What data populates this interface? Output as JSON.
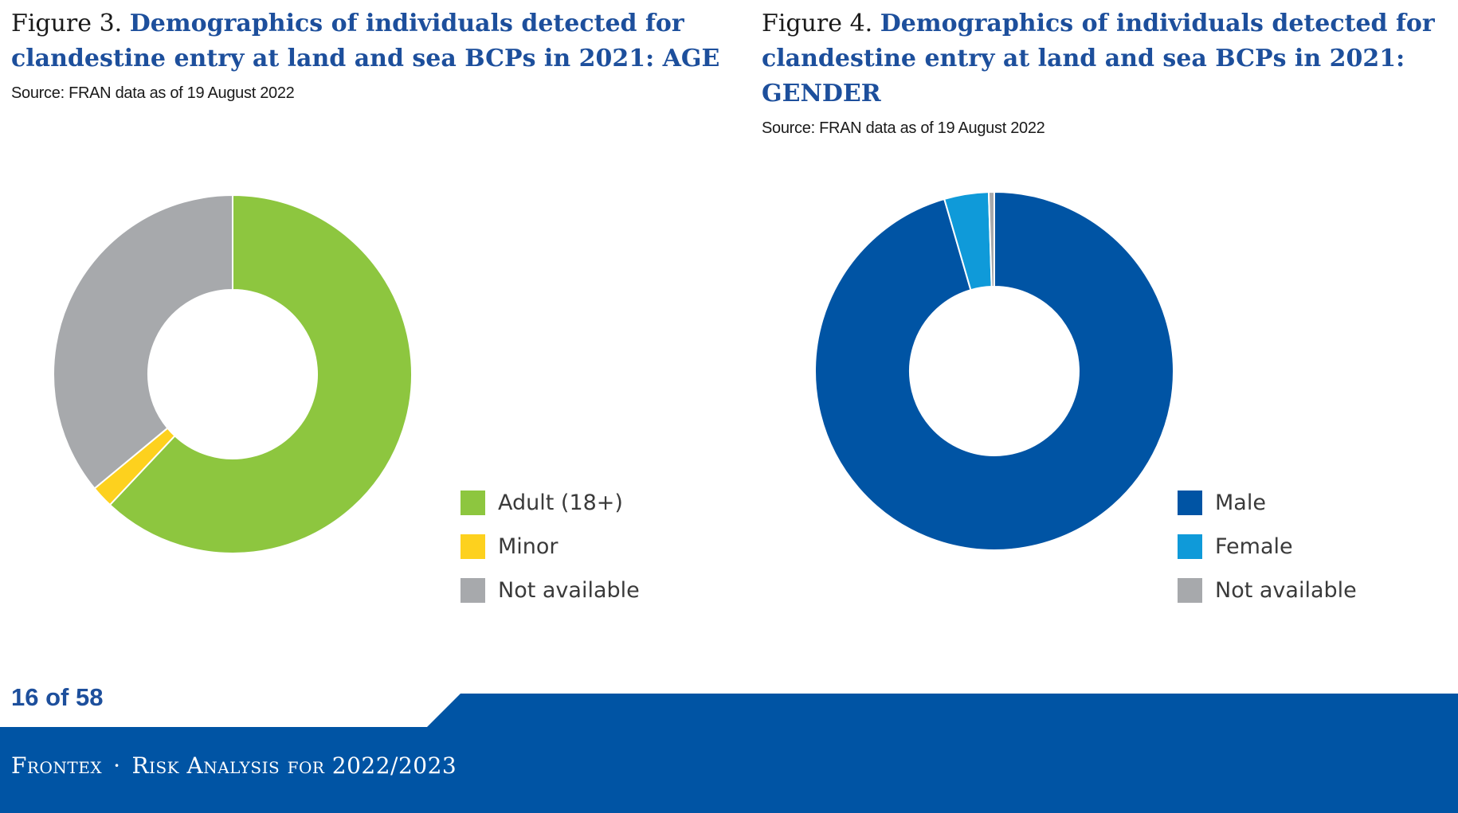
{
  "figures": [
    {
      "number": "Figure 3.",
      "heading_line1": "Demographics of individuals detected for",
      "heading_line2": "clandestine entry at land and sea BCPs in 2021: AGE",
      "source": "Source: FRAN data as of 19 August 2022"
    },
    {
      "number": "Figure 4.",
      "heading_line1": "Demographics of individuals detected for",
      "heading_line2": "clandestine entry at land and sea BCPs in 2021: GENDER",
      "source": "Source: FRAN data as of 19 August 2022"
    }
  ],
  "chart_data": [
    {
      "type": "pie",
      "donut": true,
      "title": "Demographics of individuals detected for clandestine entry at land and sea BCPs in 2021: AGE",
      "categories": [
        "Adult (18+)",
        "Minor",
        "Not available"
      ],
      "values": [
        62,
        2,
        36
      ],
      "unit": "%",
      "colors": [
        "#8dc63f",
        "#fdd11e",
        "#a7a9ac"
      ],
      "legend_position": "right-bottom"
    },
    {
      "type": "pie",
      "donut": true,
      "title": "Demographics of individuals detected for clandestine entry at land and sea BCPs in 2021: GENDER",
      "categories": [
        "Male",
        "Female",
        "Not available"
      ],
      "values": [
        95.5,
        4,
        0.5
      ],
      "unit": "%",
      "colors": [
        "#0054a4",
        "#0f9ad9",
        "#a7a9ac"
      ],
      "legend_position": "right-bottom"
    }
  ],
  "footer": {
    "page_number": "16 of 58",
    "org": "Frontex",
    "separator": "·",
    "publication": "Risk Analysis for 2022/2023",
    "band_color": "#0054a4"
  }
}
